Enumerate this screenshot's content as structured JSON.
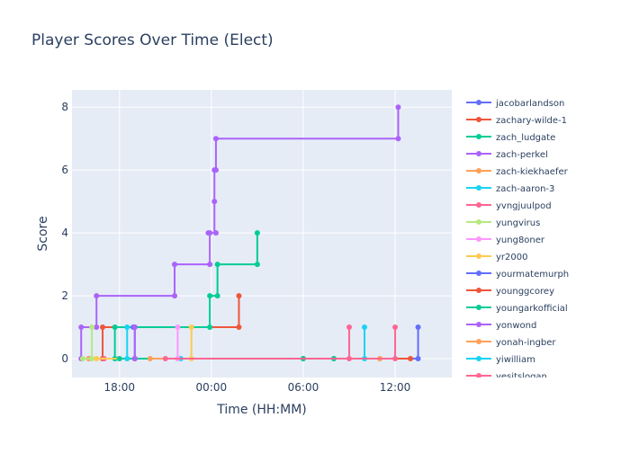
{
  "chart_data": {
    "type": "line",
    "line_shape": "step",
    "title": "Player Scores Over Time (Elect)",
    "xlabel": "Time (HH:MM)",
    "ylabel": "Score",
    "x_unit": "time of day (hours, values past 24 are next day)",
    "x_ticks": [
      {
        "value": 18,
        "label": "18:00"
      },
      {
        "value": 24,
        "label": "00:00"
      },
      {
        "value": 30,
        "label": "06:00"
      },
      {
        "value": 36,
        "label": "12:00"
      }
    ],
    "xlim": [
      14.9,
      39.7
    ],
    "ylim": [
      -0.6,
      8.55
    ],
    "y_ticks": [
      0,
      2,
      4,
      6,
      8
    ],
    "grid": true,
    "legend_position": "right",
    "series": [
      {
        "name": "jacobarlandson",
        "color": "#636efa",
        "points": [
          [
            16.0,
            0
          ],
          [
            37.5,
            0
          ],
          [
            37.5,
            1
          ]
        ]
      },
      {
        "name": "zachary-wilde-1",
        "color": "#EF553B",
        "points": [
          [
            16.9,
            0
          ],
          [
            16.9,
            1
          ],
          [
            25.8,
            1
          ],
          [
            25.8,
            2
          ]
        ]
      },
      {
        "name": "zach_ludgate",
        "color": "#00cc96",
        "points": [
          [
            17.7,
            0
          ],
          [
            17.7,
            1
          ],
          [
            23.9,
            1
          ],
          [
            23.9,
            2
          ],
          [
            24.4,
            2
          ],
          [
            24.4,
            3
          ],
          [
            27.0,
            3
          ],
          [
            27.0,
            4
          ]
        ]
      },
      {
        "name": "zach-perkel",
        "color": "#ab63fa",
        "points": [
          [
            15.5,
            0
          ],
          [
            15.5,
            1
          ],
          [
            16.5,
            1
          ],
          [
            16.5,
            2
          ],
          [
            21.6,
            2
          ],
          [
            21.6,
            3
          ],
          [
            23.9,
            3
          ],
          [
            23.9,
            4
          ],
          [
            23.8,
            4
          ],
          [
            24.3,
            4
          ],
          [
            24.2,
            5
          ],
          [
            24.2,
            6
          ],
          [
            24.3,
            6
          ],
          [
            24.3,
            7
          ],
          [
            36.2,
            7
          ],
          [
            36.2,
            8
          ]
        ]
      },
      {
        "name": "zach-kiekhaefer",
        "color": "#FFA15A",
        "points": [
          [
            16.0,
            0
          ],
          [
            35.0,
            0
          ]
        ]
      },
      {
        "name": "zach-aaron-3",
        "color": "#19d3f3",
        "points": [
          [
            22.0,
            0
          ],
          [
            34.0,
            0
          ],
          [
            34.0,
            1
          ]
        ]
      },
      {
        "name": "yvngjuulpod",
        "color": "#FF6692",
        "points": [
          [
            17.0,
            0
          ],
          [
            32.0,
            0
          ],
          [
            33.0,
            0
          ],
          [
            33.0,
            1
          ]
        ]
      },
      {
        "name": "yungvirus",
        "color": "#B6E880",
        "points": [
          [
            15.6,
            0
          ],
          [
            16.2,
            0
          ],
          [
            16.2,
            1
          ]
        ]
      },
      {
        "name": "yung8oner",
        "color": "#FF97FF",
        "points": [
          [
            18.0,
            0
          ],
          [
            21.8,
            0
          ],
          [
            21.8,
            1
          ]
        ]
      },
      {
        "name": "yr2000",
        "color": "#FECB52",
        "points": [
          [
            16.5,
            0
          ],
          [
            22.7,
            0
          ],
          [
            22.7,
            1
          ]
        ]
      },
      {
        "name": "yourmatemurph",
        "color": "#636efa",
        "points": [
          [
            19.0,
            0
          ],
          [
            19.0,
            1
          ],
          [
            18.9,
            1
          ]
        ]
      },
      {
        "name": "younggcorey",
        "color": "#EF553B",
        "points": [
          [
            19.0,
            0
          ],
          [
            30.0,
            0
          ],
          [
            37.0,
            0
          ]
        ]
      },
      {
        "name": "youngarkofficial",
        "color": "#00cc96",
        "points": [
          [
            18.0,
            0
          ],
          [
            30.0,
            0
          ],
          [
            32.0,
            0
          ]
        ]
      },
      {
        "name": "yonwond",
        "color": "#ab63fa",
        "points": [
          [
            19.0,
            0
          ],
          [
            19.0,
            1
          ]
        ]
      },
      {
        "name": "yonah-ingber",
        "color": "#FFA15A",
        "points": [
          [
            20.0,
            0
          ],
          [
            35.0,
            0
          ]
        ]
      },
      {
        "name": "yiwilliam",
        "color": "#19d3f3",
        "points": [
          [
            18.5,
            0
          ],
          [
            18.5,
            1
          ]
        ]
      },
      {
        "name": "yesitslogan",
        "color": "#FF6692",
        "points": [
          [
            21.0,
            0
          ],
          [
            36.0,
            0
          ],
          [
            36.0,
            1
          ]
        ]
      }
    ]
  }
}
